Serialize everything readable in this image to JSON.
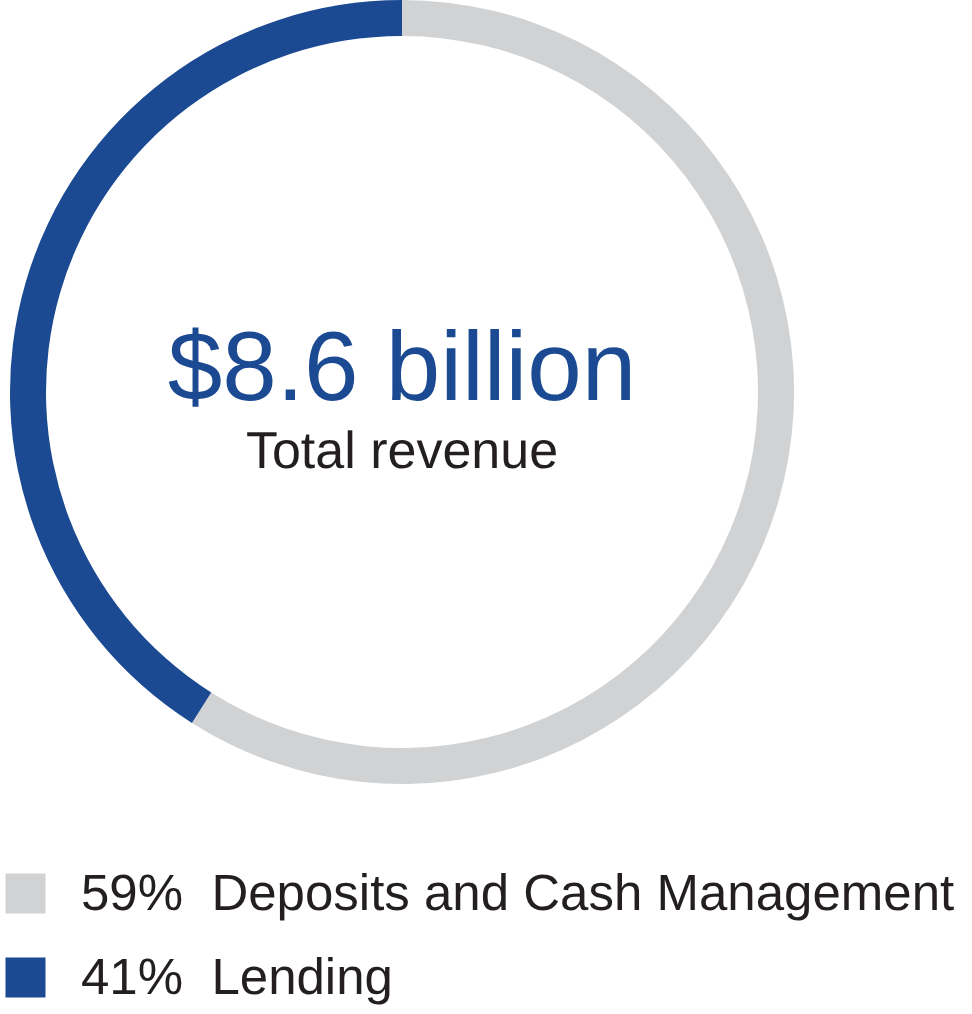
{
  "chart_data": {
    "type": "donut",
    "annotations": [
      "$8.6 billion",
      "Total revenue"
    ],
    "categories": [
      "Deposits and Cash Management",
      "Lending"
    ],
    "values": [
      59,
      41
    ],
    "colors": [
      "#d1d2d4",
      "#1b4a93"
    ],
    "value_labels": [
      "59%",
      "41%"
    ],
    "legend": "bottom"
  }
}
